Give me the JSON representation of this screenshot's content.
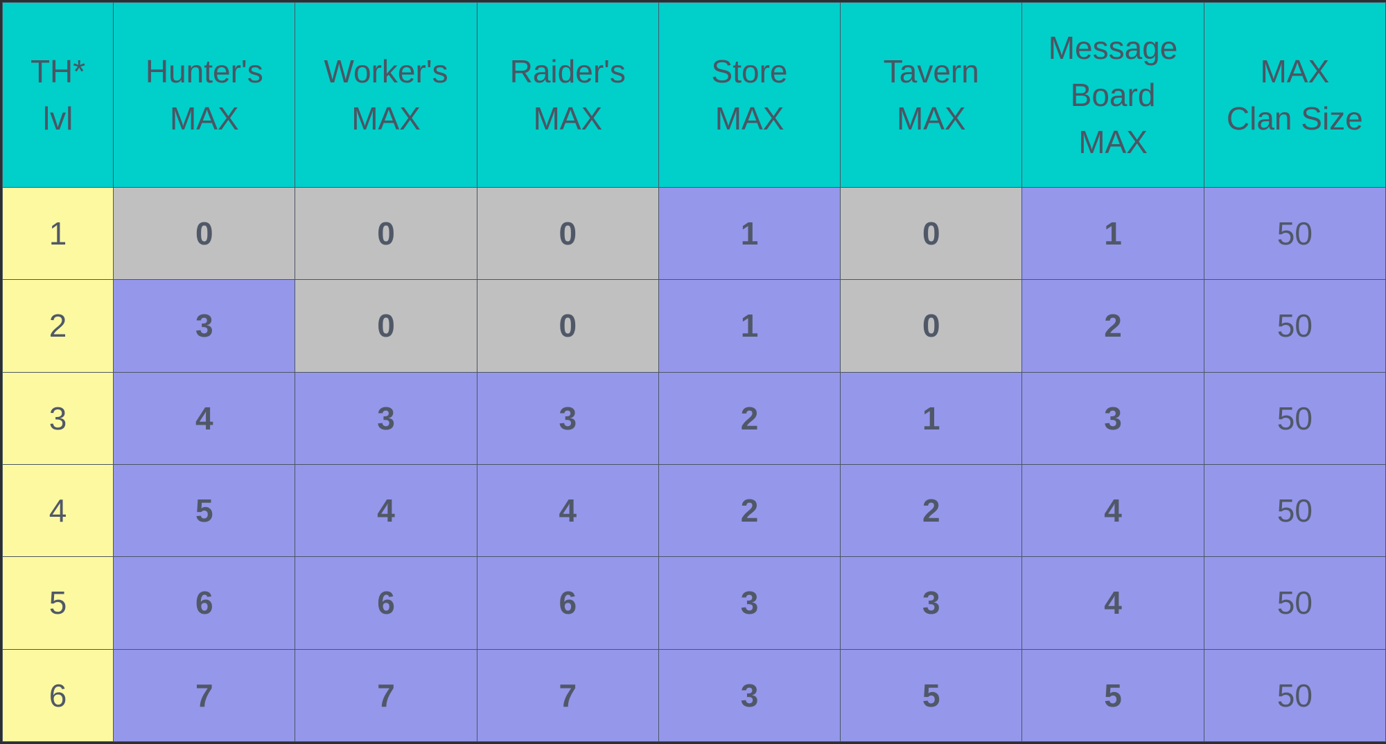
{
  "table": {
    "headers": [
      [
        "TH*",
        "lvl"
      ],
      [
        "Hunter's",
        "MAX"
      ],
      [
        "Worker's",
        "MAX"
      ],
      [
        "Raider's",
        "MAX"
      ],
      [
        "Store",
        "MAX"
      ],
      [
        "Tavern",
        "MAX"
      ],
      [
        "Message",
        "Board",
        "MAX"
      ],
      [
        "MAX",
        "Clan Size"
      ]
    ],
    "rows": [
      [
        "1",
        "0",
        "0",
        "0",
        "1",
        "0",
        "1",
        "50"
      ],
      [
        "2",
        "3",
        "0",
        "0",
        "1",
        "0",
        "2",
        "50"
      ],
      [
        "3",
        "4",
        "3",
        "3",
        "2",
        "1",
        "3",
        "50"
      ],
      [
        "4",
        "5",
        "4",
        "4",
        "2",
        "2",
        "4",
        "50"
      ],
      [
        "5",
        "6",
        "6",
        "6",
        "3",
        "3",
        "4",
        "50"
      ],
      [
        "6",
        "7",
        "7",
        "7",
        "3",
        "5",
        "5",
        "50"
      ]
    ],
    "colors": {
      "header": "#00cfca",
      "level_column": "#fdf9a0",
      "unlocked_cell": "#9597eb",
      "locked_cell": "#c0c0c0"
    }
  }
}
